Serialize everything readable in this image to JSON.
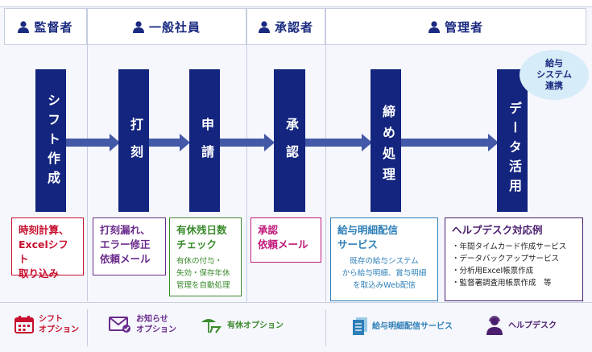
{
  "headers": [
    "監督者",
    "一般社員",
    "承認者",
    "管理者"
  ],
  "columns": [
    "シフト作成",
    "打刻",
    "申請",
    "承認",
    "締め処理",
    "データ活用"
  ],
  "bubble": "給与\nシステム\n連携",
  "boxes": [
    {
      "title": "時刻計算、\nExcelシフト\n取り込み",
      "body": ""
    },
    {
      "title": "打刻漏れ、\nエラー修正\n依頼メール",
      "body": ""
    },
    {
      "title": "有休残日数\nチェック",
      "body": "有休の付与・\n失効・保存年休\n管理を自動処理"
    },
    {
      "title": "承認\n依頼メール",
      "body": ""
    },
    {
      "title": "給与明細配信\nサービス",
      "body": "既存の給与システム\nから給与明細、賞与明細\nを取込みWeb配信"
    },
    {
      "title": "ヘルプデスク対応例",
      "body": "・年間タイムカード作成サービス\n・データバックアップサービス\n・分析用Excel帳票作成\n・監督署調査用帳票作成　等"
    }
  ],
  "footer": {
    "shift": "シフト\nオプション",
    "notice": "お知らせ\nオプション",
    "leave": "有休オプション",
    "payslip": "給与明細配信サービス",
    "helpdesk": "ヘルプデスク"
  },
  "colors": {
    "navy": "#14257f",
    "red": "#c8102e",
    "purple": "#6a2b8c",
    "green": "#3a8a2c",
    "pink": "#c2187a",
    "blue": "#2e7fb8",
    "darkpurple": "#4b1e6e"
  }
}
